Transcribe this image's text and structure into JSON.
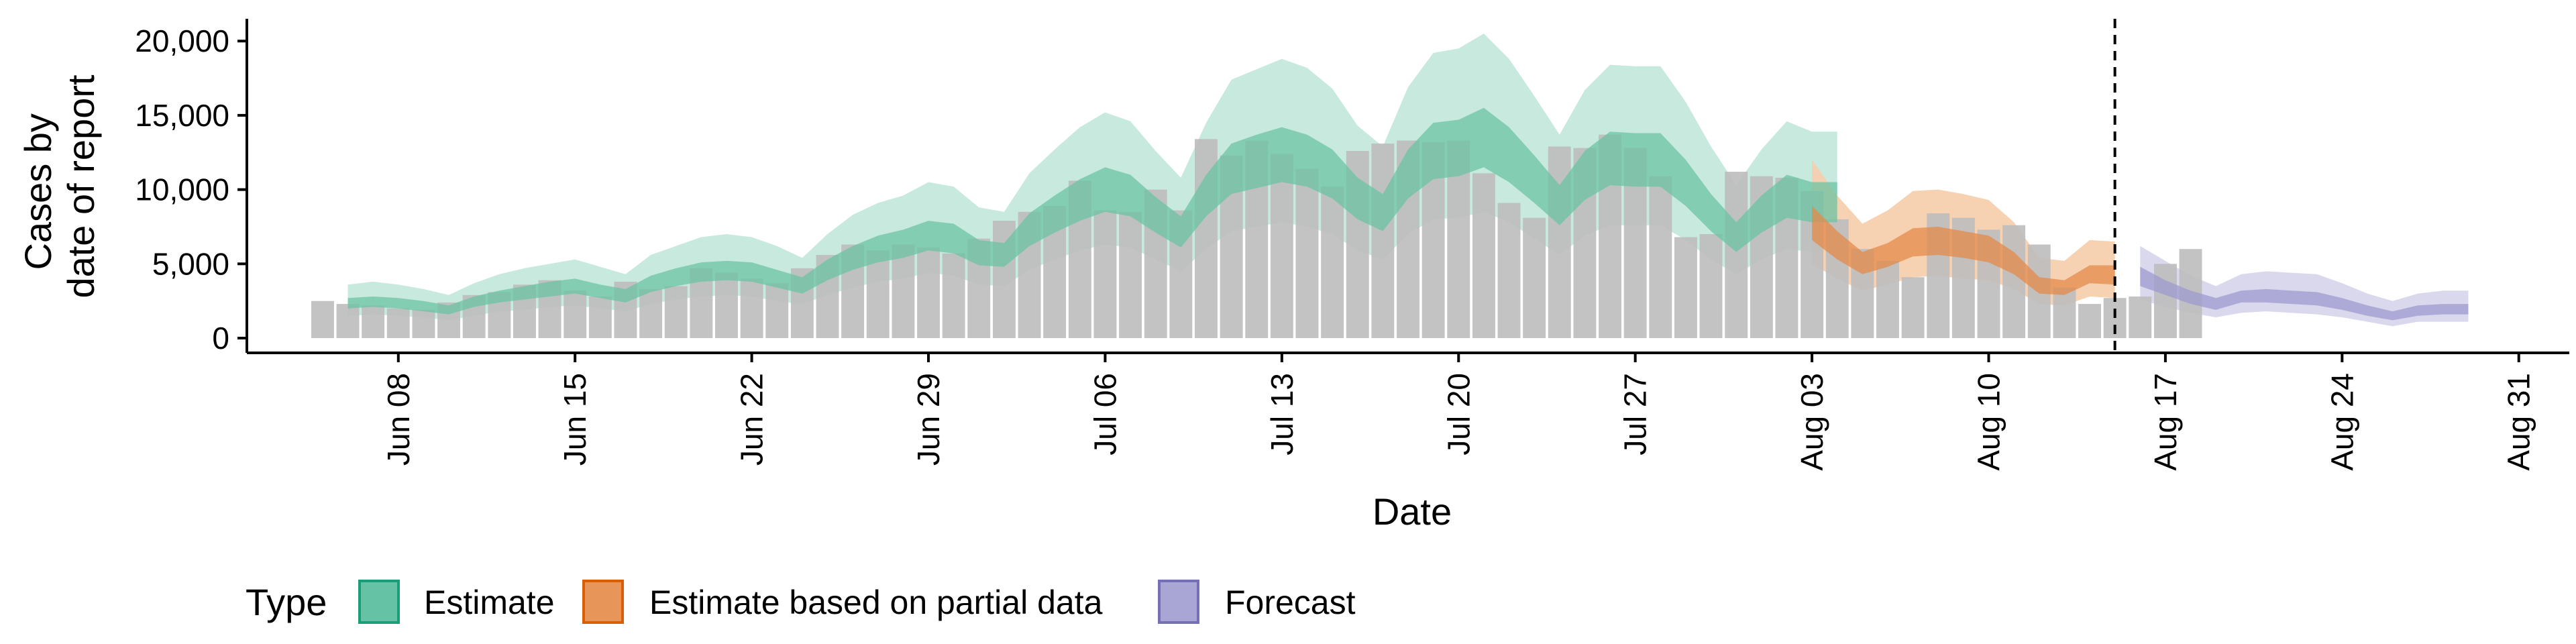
{
  "chart_data": {
    "type": "bar",
    "xlabel": "Date",
    "ylabel_lines": [
      "Cases by",
      "date of report"
    ],
    "ylim": [
      0,
      21500
    ],
    "yticks": [
      0,
      5000,
      10000,
      15000,
      20000
    ],
    "ytick_labels": [
      "0",
      "5,000",
      "10,000",
      "15,000",
      "20,000"
    ],
    "xlim": [
      "2020-06-02",
      "2020-09-02"
    ],
    "xticks": [
      "2020-06-08",
      "2020-06-15",
      "2020-06-22",
      "2020-06-29",
      "2020-07-06",
      "2020-07-13",
      "2020-07-20",
      "2020-07-27",
      "2020-08-03",
      "2020-08-10",
      "2020-08-17",
      "2020-08-24",
      "2020-08-31"
    ],
    "xtick_labels": [
      "Jun 08",
      "Jun 15",
      "Jun 22",
      "Jun 29",
      "Jul 06",
      "Jul 13",
      "Jul 20",
      "Jul 27",
      "Aug 03",
      "Aug 10",
      "Aug 17",
      "Aug 24",
      "Aug 31"
    ],
    "vline_date": "2020-08-15",
    "grid": false,
    "legend": {
      "title": "Type",
      "placement": "bottom",
      "entries": [
        {
          "label": "Estimate",
          "fill": "#66c2a5",
          "stroke": "#1b9e77"
        },
        {
          "label": "Estimate based on partial data",
          "fill": "#e8955a",
          "stroke": "#d95f02"
        },
        {
          "label": "Forecast",
          "fill": "#a9a5d4",
          "stroke": "#7570b3"
        }
      ]
    },
    "colors": {
      "bar": "#bdbdbd",
      "estimate_outer": "#c4e8dc",
      "estimate_inner": "#6cc3a3",
      "partial_outer": "#f5cfae",
      "partial_inner": "#e4894a",
      "forecast_outer": "#d8d6ec",
      "forecast_inner": "#9f9bcf",
      "vline": "#000000"
    },
    "reported_cases": {
      "start_date": "2020-06-05",
      "values": [
        2500,
        2300,
        2200,
        2000,
        1900,
        2400,
        2900,
        3100,
        3600,
        3900,
        3200,
        2800,
        3800,
        3300,
        3500,
        4700,
        4400,
        4000,
        3700,
        4700,
        5600,
        6300,
        5900,
        6300,
        6100,
        5700,
        6700,
        7900,
        8500,
        8900,
        10600,
        8600,
        8500,
        10000,
        8600,
        13400,
        12300,
        13300,
        12400,
        11400,
        10200,
        12600,
        13100,
        13300,
        13200,
        13300,
        11100,
        9100,
        8100,
        12900,
        12800,
        13700,
        12800,
        10900,
        6800,
        7000,
        11200,
        10900,
        10800,
        9900,
        8000,
        6000,
        5200,
        4100,
        8400,
        8100,
        7300,
        7600,
        6300,
        3400,
        2300,
        2700,
        2800,
        5000,
        6000
      ]
    },
    "estimate": {
      "start_date": "2020-06-06",
      "outer_upper": [
        3600,
        3800,
        3600,
        3300,
        2900,
        3700,
        4300,
        4700,
        5000,
        5300,
        4800,
        4300,
        5600,
        6200,
        6800,
        7000,
        6800,
        6200,
        5400,
        7000,
        8300,
        9100,
        9600,
        10500,
        10200,
        8800,
        8500,
        11100,
        12700,
        14200,
        15200,
        14600,
        12600,
        10800,
        14500,
        17400,
        18100,
        18800,
        18200,
        16800,
        14300,
        12900,
        16900,
        19200,
        19500,
        20500,
        18800,
        16300,
        13700,
        16700,
        18400,
        18300,
        18300,
        15900,
        12900,
        10300,
        12700,
        14600,
        13900,
        13900
      ],
      "inner_upper": [
        2700,
        2800,
        2700,
        2500,
        2200,
        2800,
        3200,
        3500,
        3800,
        4000,
        3600,
        3300,
        4200,
        4700,
        5100,
        5200,
        5100,
        4600,
        4100,
        5300,
        6200,
        6900,
        7300,
        7900,
        7700,
        6600,
        6400,
        8400,
        9600,
        10700,
        11500,
        11000,
        9500,
        8200,
        11000,
        13100,
        13700,
        14200,
        13700,
        12700,
        10800,
        9700,
        12700,
        14500,
        14700,
        15500,
        14200,
        12300,
        10300,
        12600,
        13900,
        13800,
        13800,
        12000,
        9700,
        7800,
        9600,
        11000,
        10500,
        10500
      ],
      "inner_lower": [
        2000,
        2100,
        2000,
        1800,
        1600,
        2100,
        2400,
        2600,
        2800,
        3000,
        2700,
        2400,
        3100,
        3500,
        3800,
        3900,
        3800,
        3400,
        3000,
        3900,
        4600,
        5100,
        5400,
        5900,
        5700,
        4900,
        4800,
        6200,
        7100,
        7900,
        8500,
        8200,
        7100,
        6100,
        8200,
        9700,
        10100,
        10500,
        10200,
        9400,
        8000,
        7200,
        9400,
        10700,
        10900,
        11500,
        10500,
        9100,
        7600,
        9300,
        10300,
        10200,
        10200,
        8900,
        7200,
        5800,
        7100,
        8100,
        7800,
        7800
      ],
      "outer_lower": [
        1500,
        1600,
        1500,
        1400,
        1200,
        1500,
        1800,
        1900,
        2100,
        2200,
        2000,
        1800,
        2300,
        2600,
        2800,
        2900,
        2800,
        2500,
        2300,
        2900,
        3400,
        3800,
        4000,
        4400,
        4200,
        3600,
        3500,
        4600,
        5300,
        5900,
        6300,
        6100,
        5300,
        4500,
        6000,
        7200,
        7500,
        7800,
        7500,
        7000,
        5900,
        5300,
        7000,
        8000,
        8100,
        8500,
        7800,
        6700,
        5600,
        6900,
        7600,
        7600,
        7600,
        6600,
        5300,
        4300,
        5300,
        6000,
        5800,
        5800
      ]
    },
    "partial_estimate": {
      "start_date": "2020-08-03",
      "outer_upper": [
        12000,
        9600,
        7700,
        8600,
        9900,
        10000,
        9700,
        9300,
        7800,
        5400,
        5200,
        6600,
        6500
      ],
      "inner_upper": [
        8900,
        7200,
        5800,
        6400,
        7400,
        7500,
        7200,
        6900,
        5800,
        4100,
        3900,
        4900,
        4900
      ],
      "inner_lower": [
        6600,
        5300,
        4300,
        4800,
        5500,
        5600,
        5400,
        5100,
        4300,
        3000,
        2900,
        3700,
        3600
      ],
      "outer_lower": [
        5000,
        4000,
        3200,
        3600,
        4100,
        4200,
        4000,
        3900,
        3300,
        2300,
        2200,
        2800,
        2700
      ]
    },
    "forecast": {
      "start_date": "2020-08-16",
      "outer_upper": [
        6200,
        5200,
        4200,
        3500,
        4300,
        4500,
        4400,
        4300,
        3700,
        3000,
        2500,
        3000,
        3200,
        3200
      ],
      "inner_upper": [
        4800,
        3900,
        3200,
        2700,
        3200,
        3300,
        3200,
        3100,
        2700,
        2200,
        1800,
        2200,
        2300,
        2300
      ],
      "inner_lower": [
        3500,
        2900,
        2300,
        1900,
        2400,
        2400,
        2300,
        2200,
        1900,
        1500,
        1200,
        1500,
        1600,
        1600
      ],
      "outer_lower": [
        2600,
        2100,
        1700,
        1400,
        1700,
        1800,
        1700,
        1600,
        1400,
        1100,
        800,
        1100,
        1100,
        1100
      ]
    }
  }
}
